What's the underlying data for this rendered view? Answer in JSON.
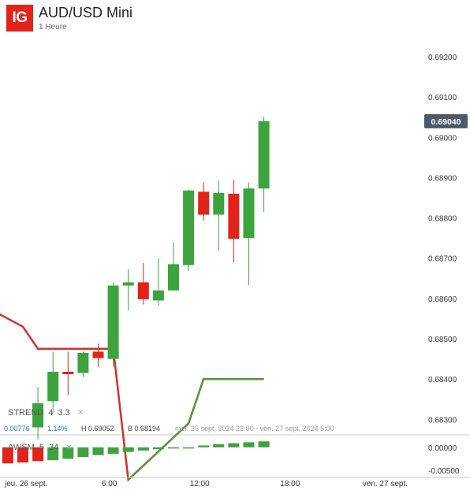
{
  "header": {
    "logo": "IG",
    "title": "AUD/USD Mini",
    "subtitle": "1 Heure"
  },
  "current_price_label": "0.69040",
  "strend": {
    "label": "STREND",
    "p1": "4",
    "p2": "3.3",
    "close": "×"
  },
  "awsm": {
    "label": "AWSM",
    "p1": "5",
    "p2": "34",
    "close": "×"
  },
  "stats": {
    "change": "0.00776",
    "change_pct": "1.14%",
    "high": "H 0.69052",
    "low": "B 0.68194",
    "range": "mer. 25 sept. 2024 23:00 - ven. 27 sept. 2024 5:00"
  },
  "colors": {
    "up": "#3ea33e",
    "down": "#e2231a",
    "price_tag": "#4a5a6a",
    "strend": "#d0312d"
  },
  "chart_data": {
    "type": "candlestick",
    "title": "AUD/USD Mini",
    "subtitle": "1 Heure",
    "y_axis_ticks": [
      "0.69200",
      "0.69100",
      "0.69000",
      "0.68900",
      "0.68800",
      "0.68700",
      "0.68600",
      "0.68500",
      "0.68400",
      "0.68300"
    ],
    "ylim": [
      0.6828,
      0.6925
    ],
    "x_axis_ticks": [
      "jeu. 26 sept.",
      "6:00",
      "12:00",
      "18:00",
      "ven. 27 sept."
    ],
    "x_tick_hours": [
      0,
      6,
      12,
      18,
      24
    ],
    "candles": [
      {
        "h": 1,
        "o": 0.6828,
        "hi": 0.6838,
        "l": 0.6825,
        "c": 0.6834
      },
      {
        "h": 2,
        "o": 0.68345,
        "hi": 0.68468,
        "l": 0.68315,
        "c": 0.68418
      },
      {
        "h": 3,
        "o": 0.68418,
        "hi": 0.68468,
        "l": 0.6836,
        "c": 0.68412
      },
      {
        "h": 4,
        "o": 0.68415,
        "hi": 0.68468,
        "l": 0.68405,
        "c": 0.68465
      },
      {
        "h": 5,
        "o": 0.68468,
        "hi": 0.68488,
        "l": 0.6843,
        "c": 0.68452
      },
      {
        "h": 6,
        "o": 0.6845,
        "hi": 0.6864,
        "l": 0.6843,
        "c": 0.68632
      },
      {
        "h": 7,
        "o": 0.68632,
        "hi": 0.68673,
        "l": 0.6857,
        "c": 0.6864
      },
      {
        "h": 8,
        "o": 0.6864,
        "hi": 0.68688,
        "l": 0.68585,
        "c": 0.68598
      },
      {
        "h": 9,
        "o": 0.68595,
        "hi": 0.687,
        "l": 0.68583,
        "c": 0.6862
      },
      {
        "h": 10,
        "o": 0.6862,
        "hi": 0.6874,
        "l": 0.6862,
        "c": 0.68685
      },
      {
        "h": 11,
        "o": 0.68683,
        "hi": 0.6887,
        "l": 0.68668,
        "c": 0.68868
      },
      {
        "h": 12,
        "o": 0.68865,
        "hi": 0.68888,
        "l": 0.68793,
        "c": 0.68808
      },
      {
        "h": 13,
        "o": 0.68808,
        "hi": 0.68893,
        "l": 0.68718,
        "c": 0.68862
      },
      {
        "h": 14,
        "o": 0.6886,
        "hi": 0.68895,
        "l": 0.6869,
        "c": 0.68748
      },
      {
        "h": 15,
        "o": 0.6875,
        "hi": 0.68888,
        "l": 0.68633,
        "c": 0.68873
      },
      {
        "h": 16,
        "o": 0.68873,
        "hi": 0.69052,
        "l": 0.68815,
        "c": 0.6904
      }
    ],
    "strend_line": [
      [
        -2,
        0.6857
      ],
      [
        0,
        0.6853
      ],
      [
        1,
        0.68475
      ],
      [
        6,
        0.68475
      ],
      [
        7,
        0.6815
      ],
      [
        11,
        0.6829
      ],
      [
        12,
        0.684
      ],
      [
        16,
        0.684
      ]
    ],
    "awsm": {
      "ylim": [
        -0.0062,
        0.0022
      ],
      "ticks": [
        "0.00000",
        "-0.00500"
      ],
      "hours": [
        -1,
        0,
        1,
        2,
        3,
        4,
        5,
        6,
        7,
        8,
        9,
        10,
        11,
        12,
        13,
        14,
        15,
        16
      ],
      "values": [
        -0.0035,
        -0.0033,
        -0.003,
        -0.0028,
        -0.0025,
        -0.0021,
        -0.0017,
        -0.0014,
        -0.001,
        -0.0007,
        -0.0004,
        -0.0002,
        0.0,
        0.0004,
        0.0007,
        0.0009,
        0.0011,
        0.0013
      ],
      "colors": [
        "down",
        "down",
        "down",
        "up",
        "up",
        "up",
        "up",
        "up",
        "up",
        "up",
        "up",
        "up",
        "up",
        "up",
        "up",
        "up",
        "up",
        "up"
      ]
    }
  }
}
